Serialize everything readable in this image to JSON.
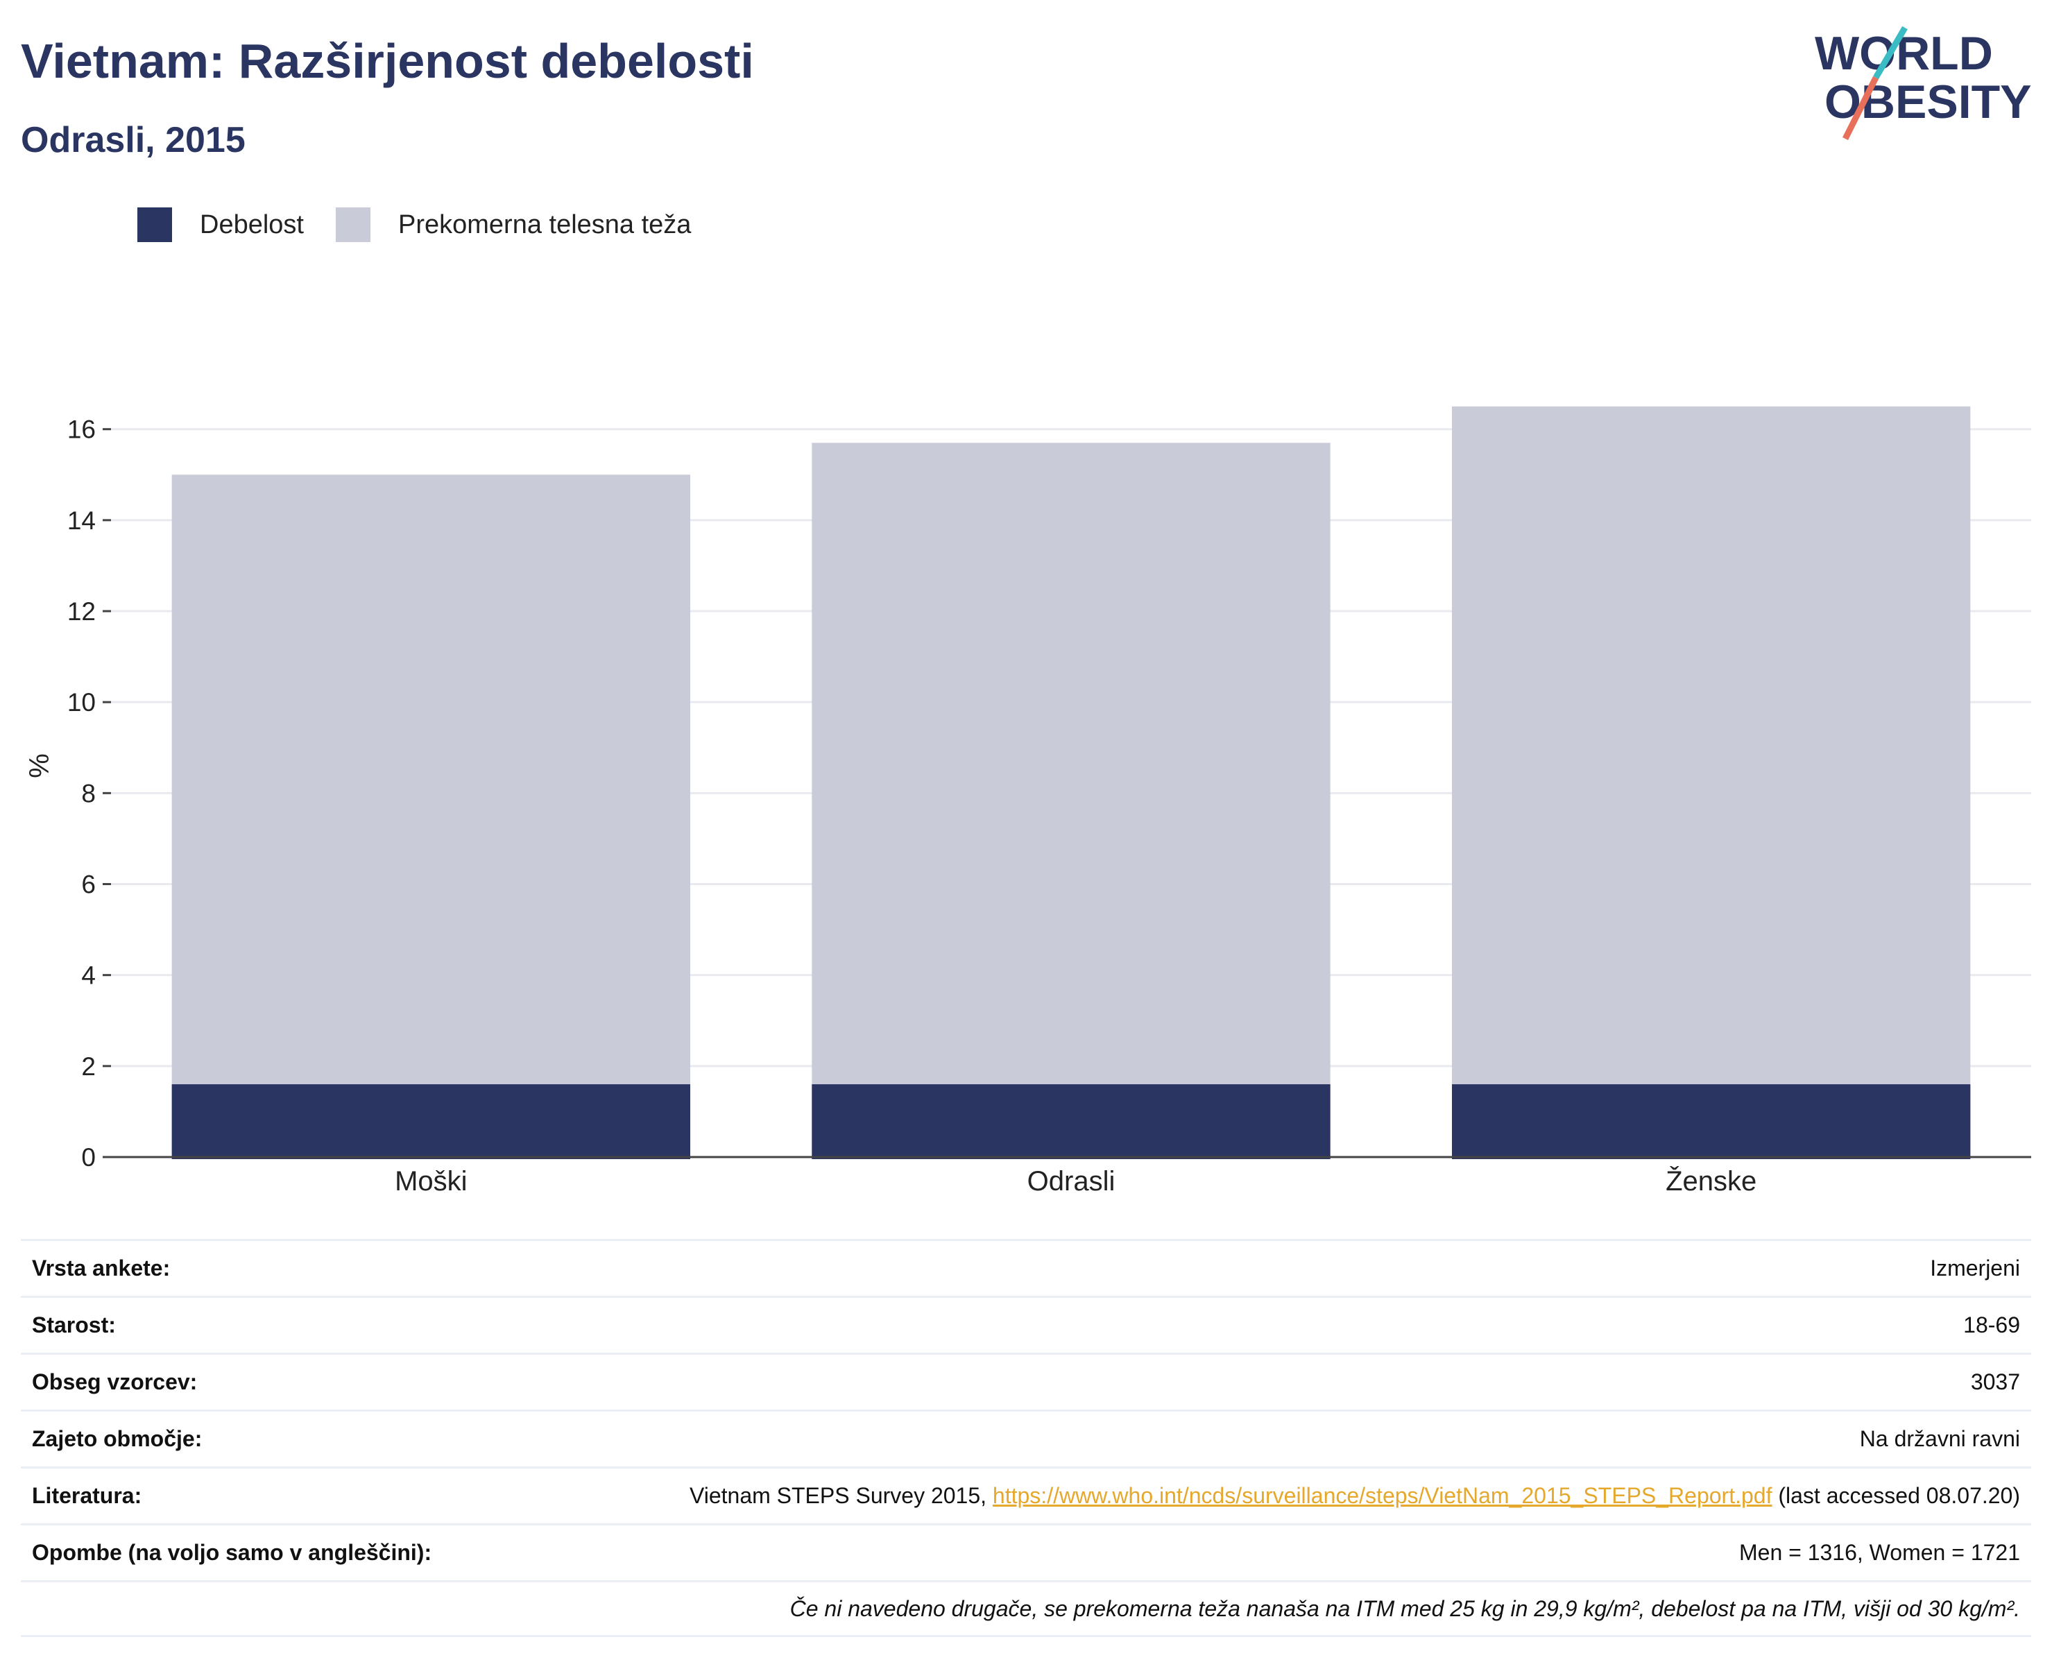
{
  "title": "Vietnam: Razširjenost debelosti",
  "subtitle": "Odrasli, 2015",
  "logo": {
    "line1": "WORLD",
    "line2": "OBESITY"
  },
  "legend": [
    {
      "label": "Debelost",
      "color": "#2a3561"
    },
    {
      "label": "Prekomerna telesna teža",
      "color": "#c9cbd8"
    }
  ],
  "chart_data": {
    "type": "bar",
    "stacked": false,
    "categories": [
      "Moški",
      "Odrasli",
      "Ženske"
    ],
    "series": [
      {
        "name": "Prekomerna telesna teža",
        "color": "#c9cbd8",
        "values": [
          15.0,
          15.7,
          16.5
        ]
      },
      {
        "name": "Debelost",
        "color": "#2a3561",
        "values": [
          1.6,
          1.6,
          1.6
        ]
      }
    ],
    "ylabel": "%",
    "ylim": [
      0,
      17.2
    ],
    "yticks": [
      0,
      2,
      4,
      6,
      8,
      10,
      12,
      14,
      16
    ],
    "grid": true,
    "legend_position": "top-left"
  },
  "meta": {
    "survey_label": "Vrsta ankete:",
    "survey_value": "Izmerjeni",
    "age_label": "Starost:",
    "age_value": "18-69",
    "sample_label": "Obseg vzorcev:",
    "sample_value": "3037",
    "area_label": "Zajeto območje:",
    "area_value": "Na državni ravni",
    "ref_label": "Literatura:",
    "ref_prefix": "Vietnam STEPS Survey 2015, ",
    "ref_link": "https://www.who.int/ncds/surveillance/steps/VietNam_2015_STEPS_Report.pdf",
    "ref_suffix": " (last accessed 08.07.20)",
    "notes_label": "Opombe (na voljo samo v angleščini):",
    "notes_value": "Men = 1316, Women = 1721",
    "footnote": "Če ni navedeno drugače, se prekomerna teža nanaša na ITM med 25 kg in 29,9 kg/m², debelost pa na ITM, višji od 30 kg/m²."
  }
}
